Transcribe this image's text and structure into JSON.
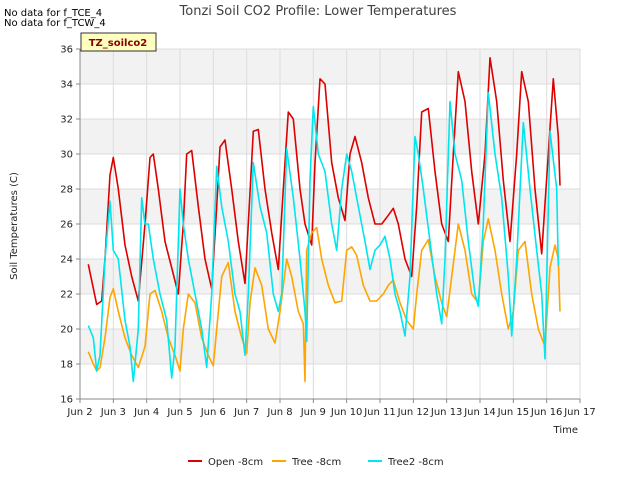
{
  "notes": [
    "No data for f_TCE_4",
    "No data for f_TCW_4"
  ],
  "chart_data": {
    "type": "line",
    "title": "Tonzi Soil CO2 Profile: Lower Temperatures",
    "xlabel": "Time",
    "ylabel": "Soil Temperatures (C)",
    "ylim": [
      16,
      36
    ],
    "yticks": [
      16,
      18,
      20,
      22,
      24,
      26,
      28,
      30,
      32,
      34,
      36
    ],
    "xlim": [
      2,
      17
    ],
    "xtick_values": [
      2,
      3,
      4,
      5,
      6,
      7,
      8,
      9,
      10,
      11,
      12,
      13,
      14,
      15,
      16,
      17
    ],
    "xtick_labels": [
      "Jun 2",
      "Jun 3",
      "Jun 4",
      "Jun 5",
      "Jun 6",
      "Jun 7",
      "Jun 8",
      "Jun 9",
      "Jun 10",
      "Jun 11",
      "Jun 12",
      "Jun 13",
      "Jun 14",
      "Jun 15",
      "Jun 16",
      "Jun 17"
    ],
    "grid": true,
    "legend_position": "bottom",
    "box_label": "TZ_soilco2",
    "series": [
      {
        "name": "Open -8cm",
        "color": "#dd0000",
        "x": [
          2.25,
          2.5,
          2.65,
          2.75,
          2.9,
          3.0,
          3.15,
          3.35,
          3.55,
          3.75,
          3.95,
          4.1,
          4.2,
          4.35,
          4.55,
          4.75,
          4.95,
          5.1,
          5.2,
          5.35,
          5.55,
          5.75,
          5.95,
          6.1,
          6.2,
          6.35,
          6.55,
          6.75,
          6.95,
          7.1,
          7.2,
          7.35,
          7.55,
          7.75,
          7.95,
          8.1,
          8.25,
          8.4,
          8.6,
          8.75,
          8.95,
          9.05,
          9.2,
          9.35,
          9.55,
          9.75,
          9.95,
          10.1,
          10.25,
          10.45,
          10.65,
          10.85,
          11.05,
          11.25,
          11.4,
          11.55,
          11.75,
          11.95,
          12.1,
          12.25,
          12.45,
          12.65,
          12.85,
          13.05,
          13.2,
          13.35,
          13.55,
          13.75,
          13.95,
          14.15,
          14.3,
          14.5,
          14.7,
          14.9,
          15.1,
          15.25,
          15.45,
          15.65,
          15.85,
          16.05,
          16.2,
          16.35
        ],
        "y": [
          23.7,
          21.4,
          21.6,
          24.0,
          28.8,
          29.8,
          28.0,
          24.8,
          23.0,
          21.6,
          26.0,
          29.8,
          30.0,
          28.0,
          25.0,
          23.5,
          22.0,
          26.0,
          30.0,
          30.2,
          27.0,
          24.0,
          22.3,
          27.0,
          30.4,
          30.8,
          28.0,
          25.0,
          22.6,
          27.8,
          31.3,
          31.4,
          28.0,
          25.5,
          23.4,
          28.0,
          32.4,
          32.0,
          28.0,
          26.0,
          24.8,
          29.5,
          34.3,
          34.0,
          29.5,
          27.5,
          26.2,
          30.0,
          31.0,
          29.5,
          27.5,
          26.0,
          26.0,
          26.5,
          26.9,
          26.0,
          24.0,
          23.0,
          27.0,
          32.4,
          32.6,
          29.0,
          26.0,
          25.0,
          30.0,
          34.7,
          33.0,
          29.0,
          26.0,
          30.0,
          35.5,
          33.0,
          28.5,
          25.0,
          30.0,
          34.7,
          33.0,
          28.0,
          24.3,
          30.0,
          34.3,
          31.0
        ],
        "end_value": 28.2
      },
      {
        "name": "Tree -8cm",
        "color": "#ffa500",
        "x": [
          2.25,
          2.4,
          2.5,
          2.6,
          2.75,
          2.9,
          3.0,
          3.15,
          3.35,
          3.55,
          3.75,
          3.95,
          4.1,
          4.25,
          4.45,
          4.65,
          4.85,
          5.0,
          5.1,
          5.25,
          5.45,
          5.65,
          5.85,
          6.0,
          6.1,
          6.25,
          6.45,
          6.65,
          6.85,
          7.0,
          7.1,
          7.25,
          7.45,
          7.65,
          7.85,
          8.0,
          8.2,
          8.35,
          8.55,
          8.7,
          8.75,
          8.8,
          8.95,
          9.1,
          9.25,
          9.45,
          9.65,
          9.85,
          10.0,
          10.15,
          10.3,
          10.5,
          10.7,
          10.9,
          11.1,
          11.25,
          11.4,
          11.6,
          11.8,
          12.0,
          12.1,
          12.25,
          12.45,
          12.65,
          12.85,
          13.0,
          13.15,
          13.35,
          13.55,
          13.75,
          13.95,
          14.1,
          14.25,
          14.45,
          14.65,
          14.85,
          15.0,
          15.15,
          15.35,
          15.55,
          15.75,
          15.95,
          16.1,
          16.25,
          16.35
        ],
        "y": [
          18.7,
          18.0,
          17.6,
          17.8,
          19.5,
          21.8,
          22.3,
          21.0,
          19.5,
          18.5,
          17.8,
          19.0,
          22.0,
          22.2,
          21.0,
          19.5,
          18.5,
          17.6,
          20.0,
          22.0,
          21.5,
          19.5,
          18.5,
          17.9,
          20.0,
          23.0,
          23.8,
          21.0,
          19.5,
          18.6,
          21.5,
          23.5,
          22.5,
          20.0,
          19.2,
          21.0,
          24.0,
          23.0,
          21.0,
          20.3,
          17.0,
          24.5,
          25.5,
          25.8,
          24.0,
          22.5,
          21.5,
          21.6,
          24.5,
          24.7,
          24.2,
          22.5,
          21.6,
          21.6,
          22.0,
          22.5,
          22.8,
          21.5,
          20.5,
          20.0,
          22.0,
          24.5,
          25.1,
          23.0,
          21.5,
          20.7,
          23.0,
          26.0,
          24.5,
          22.0,
          21.5,
          25.0,
          26.3,
          24.5,
          22.0,
          20.0,
          21.0,
          24.5,
          25.0,
          22.0,
          20.0,
          19.0,
          23.5,
          24.8,
          24.0
        ],
        "end_value": 21.0
      },
      {
        "name": "Tree2 -8cm",
        "color": "#00e5ee",
        "x": [
          2.25,
          2.4,
          2.5,
          2.6,
          2.75,
          2.9,
          3.0,
          3.15,
          3.35,
          3.5,
          3.6,
          3.75,
          3.85,
          3.95,
          4.05,
          4.2,
          4.4,
          4.6,
          4.75,
          4.85,
          5.0,
          5.1,
          5.25,
          5.45,
          5.65,
          5.8,
          5.95,
          6.1,
          6.25,
          6.45,
          6.65,
          6.8,
          6.95,
          7.05,
          7.2,
          7.4,
          7.6,
          7.8,
          7.95,
          8.05,
          8.2,
          8.4,
          8.6,
          8.75,
          8.8,
          8.9,
          9.0,
          9.15,
          9.35,
          9.55,
          9.7,
          9.85,
          10.0,
          10.15,
          10.35,
          10.55,
          10.7,
          10.85,
          11.0,
          11.15,
          11.3,
          11.45,
          11.6,
          11.75,
          11.9,
          12.05,
          12.15,
          12.3,
          12.5,
          12.7,
          12.85,
          12.95,
          13.1,
          13.25,
          13.45,
          13.65,
          13.85,
          13.95,
          14.1,
          14.25,
          14.45,
          14.65,
          14.85,
          14.95,
          15.1,
          15.3,
          15.5,
          15.7,
          15.85,
          15.95,
          16.1,
          16.3
        ],
        "y": [
          20.2,
          19.5,
          17.6,
          18.5,
          24.0,
          27.3,
          24.5,
          24.0,
          20.5,
          19.0,
          17.0,
          20.0,
          27.5,
          26.0,
          26.0,
          24.0,
          22.0,
          20.5,
          17.2,
          19.0,
          28.0,
          26.0,
          24.0,
          22.0,
          20.0,
          17.8,
          22.0,
          29.3,
          27.0,
          25.0,
          22.0,
          21.0,
          18.5,
          22.0,
          29.5,
          27.0,
          25.5,
          22.0,
          21.0,
          22.0,
          30.3,
          27.5,
          24.0,
          21.0,
          19.3,
          28.5,
          32.7,
          30.0,
          29.0,
          26.0,
          24.5,
          28.0,
          30.0,
          29.0,
          27.0,
          25.0,
          23.4,
          24.5,
          24.8,
          25.3,
          24.0,
          22.0,
          21.0,
          19.6,
          23.0,
          31.0,
          30.0,
          28.0,
          25.0,
          22.0,
          20.3,
          24.0,
          33.0,
          30.0,
          28.5,
          25.0,
          22.0,
          21.3,
          26.0,
          33.5,
          30.0,
          27.5,
          23.0,
          19.6,
          24.0,
          31.8,
          28.0,
          24.5,
          22.0,
          18.3,
          31.3,
          28.0
        ],
        "end_value": 23.6
      }
    ]
  }
}
